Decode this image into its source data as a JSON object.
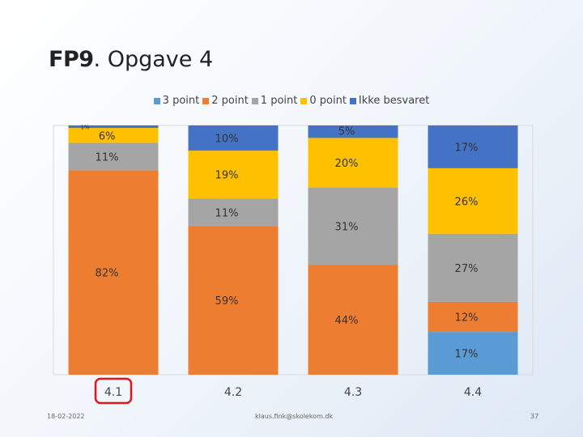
{
  "slide": {
    "title_bold": "FP9",
    "title_rest": ". Opgave 4",
    "footer_date": "18-02-2022",
    "footer_email": "klaus.fink@skolekom.dk",
    "page_number": "37"
  },
  "chart_data": {
    "type": "bar",
    "stacked": true,
    "percent": true,
    "categories": [
      "4.1",
      "4.2",
      "4.3",
      "4.4"
    ],
    "highlighted_category": "4.1",
    "legend_position": "top",
    "grid": false,
    "series": [
      {
        "name": "3 point",
        "color": "#5b9bd5",
        "values": [
          0,
          0,
          0,
          17
        ]
      },
      {
        "name": "2 point",
        "color": "#ed7d31",
        "values": [
          82,
          59,
          44,
          12
        ]
      },
      {
        "name": "1 point",
        "color": "#a5a5a5",
        "values": [
          11,
          11,
          31,
          27
        ]
      },
      {
        "name": "0 point",
        "color": "#ffc000",
        "values": [
          6,
          19,
          20,
          26
        ]
      },
      {
        "name": "Ikke besvaret",
        "color": "#4472c4",
        "values": [
          1,
          10,
          5,
          17
        ]
      }
    ],
    "labels": [
      [
        "",
        "",
        "",
        "17%"
      ],
      [
        "82%",
        "59%",
        "44%",
        "12%"
      ],
      [
        "11%",
        "11%",
        "31%",
        "27%"
      ],
      [
        "6%",
        "19%",
        "20%",
        "26%"
      ],
      [
        "1%",
        "10%",
        "5%",
        "17%"
      ]
    ]
  }
}
